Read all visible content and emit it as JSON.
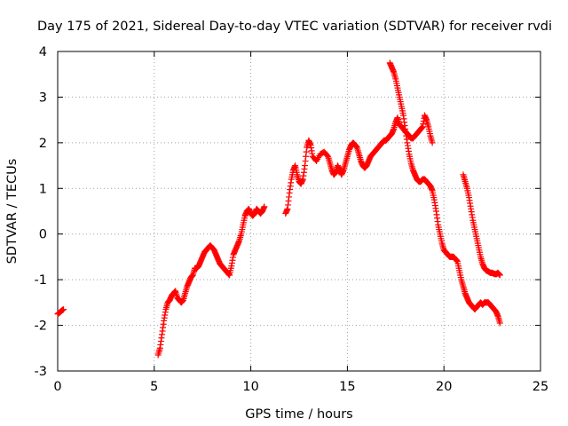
{
  "chart_data": {
    "type": "scatter",
    "title": "Day 175 of 2021, Sidereal Day-to-day VTEC variation (SDTVAR) for receiver rvdi",
    "xlabel": "GPS time / hours",
    "ylabel": "SDTVAR / TECUs",
    "xlim": [
      0,
      25
    ],
    "ylim": [
      -3,
      4
    ],
    "xticks": [
      "0",
      "5",
      "10",
      "15",
      "20",
      "25"
    ],
    "yticks": [
      "-3",
      "-2",
      "-1",
      "0",
      "1",
      "2",
      "3",
      "4"
    ],
    "grid": true,
    "legend": "none",
    "marker": "plus",
    "color": "#ff0000",
    "series": [
      {
        "x": [
          0.0,
          0.1,
          0.2,
          0.3
        ],
        "y": [
          -1.75,
          -1.72,
          -1.68,
          -1.65
        ]
      },
      {
        "x": [
          5.2,
          5.3,
          5.4,
          5.5,
          5.6,
          5.7,
          5.8,
          5.9,
          6.0,
          6.1,
          6.2,
          6.3,
          6.4,
          6.5,
          6.6,
          6.7,
          6.8,
          6.9,
          7.0,
          7.1,
          7.2,
          7.3,
          7.4,
          7.5,
          7.6,
          7.7,
          7.8,
          7.9,
          8.0,
          8.1,
          8.2,
          8.3,
          8.4,
          8.5,
          8.6,
          8.7,
          8.8,
          8.9,
          9.0,
          9.1,
          9.2,
          9.3,
          9.4,
          9.5,
          9.6,
          9.7,
          9.8,
          9.9,
          10.0,
          10.1,
          10.2,
          10.3,
          10.4,
          10.5,
          10.6,
          10.7
        ],
        "y": [
          -2.65,
          -2.5,
          -2.2,
          -1.9,
          -1.65,
          -1.5,
          -1.45,
          -1.35,
          -1.3,
          -1.25,
          -1.4,
          -1.45,
          -1.5,
          -1.45,
          -1.3,
          -1.15,
          -1.05,
          -0.95,
          -0.9,
          -0.75,
          -0.75,
          -0.7,
          -0.6,
          -0.5,
          -0.4,
          -0.35,
          -0.3,
          -0.25,
          -0.3,
          -0.35,
          -0.45,
          -0.55,
          -0.65,
          -0.7,
          -0.75,
          -0.8,
          -0.85,
          -0.9,
          -0.7,
          -0.45,
          -0.35,
          -0.25,
          -0.15,
          0.0,
          0.2,
          0.4,
          0.5,
          0.55,
          0.45,
          0.4,
          0.45,
          0.55,
          0.5,
          0.45,
          0.5,
          0.6
        ]
      },
      {
        "x": [
          11.8,
          11.9,
          12.0,
          12.1,
          12.2,
          12.3,
          12.4,
          12.5,
          12.6,
          12.7,
          12.8,
          12.9,
          13.0,
          13.1,
          13.2,
          13.4,
          13.6,
          13.8,
          14.0,
          14.1,
          14.2,
          14.3,
          14.4,
          14.5,
          14.6,
          14.7,
          14.8,
          14.9,
          15.0,
          15.1,
          15.2,
          15.3,
          15.4,
          15.5,
          15.6,
          15.7,
          15.8,
          15.9,
          16.0,
          16.1,
          16.2,
          16.3,
          16.4,
          16.5,
          16.6,
          16.7,
          16.8,
          16.9,
          17.0,
          17.1,
          17.2,
          17.3,
          17.4,
          17.5,
          17.6,
          17.7,
          17.8,
          17.9,
          18.0,
          18.1,
          18.2,
          18.3,
          18.4,
          18.5,
          18.6,
          18.7,
          18.8,
          18.9,
          19.0,
          19.1,
          19.2,
          19.3,
          19.4
        ],
        "y": [
          0.45,
          0.55,
          0.9,
          1.2,
          1.4,
          1.5,
          1.3,
          1.15,
          1.1,
          1.2,
          1.5,
          1.9,
          2.05,
          1.95,
          1.7,
          1.6,
          1.75,
          1.8,
          1.7,
          1.55,
          1.4,
          1.3,
          1.35,
          1.5,
          1.4,
          1.3,
          1.4,
          1.55,
          1.7,
          1.85,
          1.95,
          2.0,
          1.95,
          1.9,
          1.75,
          1.6,
          1.5,
          1.45,
          1.5,
          1.6,
          1.7,
          1.75,
          1.8,
          1.85,
          1.9,
          1.95,
          2.0,
          2.05,
          2.05,
          2.1,
          2.15,
          2.2,
          2.3,
          2.45,
          2.55,
          2.4,
          2.35,
          2.3,
          2.25,
          2.2,
          2.15,
          2.1,
          2.1,
          2.15,
          2.2,
          2.25,
          2.3,
          2.35,
          2.6,
          2.5,
          2.35,
          2.15,
          2.0
        ]
      },
      {
        "x": [
          17.2,
          17.3,
          17.4,
          17.5,
          17.6,
          17.7,
          17.8,
          17.9,
          18.0,
          18.1,
          18.2,
          18.3,
          18.4,
          18.5,
          18.6,
          18.7,
          18.8,
          18.9,
          19.0,
          19.1,
          19.2,
          19.3,
          19.4,
          19.5,
          19.6,
          19.7,
          19.8,
          19.9,
          20.0,
          20.1,
          20.2,
          20.3,
          20.4,
          20.5,
          20.6,
          20.7,
          20.8,
          20.9,
          21.0,
          21.1,
          21.2,
          21.3,
          21.4,
          21.5,
          21.6,
          21.7,
          21.8,
          21.9,
          22.0,
          22.1,
          22.2,
          22.3,
          22.4,
          22.5,
          22.6,
          22.7,
          22.8,
          22.9
        ],
        "y": [
          3.75,
          3.65,
          3.55,
          3.4,
          3.2,
          3.0,
          2.8,
          2.6,
          2.3,
          2.0,
          1.75,
          1.55,
          1.4,
          1.3,
          1.2,
          1.15,
          1.15,
          1.2,
          1.2,
          1.15,
          1.1,
          1.05,
          0.95,
          0.75,
          0.5,
          0.2,
          0.0,
          -0.2,
          -0.35,
          -0.4,
          -0.45,
          -0.5,
          -0.5,
          -0.5,
          -0.55,
          -0.6,
          -0.8,
          -1.0,
          -1.15,
          -1.3,
          -1.4,
          -1.5,
          -1.55,
          -1.6,
          -1.65,
          -1.6,
          -1.55,
          -1.5,
          -1.55,
          -1.5,
          -1.5,
          -1.5,
          -1.55,
          -1.6,
          -1.65,
          -1.7,
          -1.8,
          -1.95
        ]
      },
      {
        "x": [
          21.0,
          21.1,
          21.2,
          21.3,
          21.4,
          21.5,
          21.6,
          21.7,
          21.8,
          21.9,
          22.0,
          22.1,
          22.2,
          22.3,
          22.4,
          22.5,
          22.6,
          22.7,
          22.8,
          22.9
        ],
        "y": [
          1.3,
          1.15,
          1.0,
          0.8,
          0.55,
          0.3,
          0.1,
          -0.1,
          -0.3,
          -0.5,
          -0.65,
          -0.75,
          -0.8,
          -0.82,
          -0.85,
          -0.85,
          -0.87,
          -0.88,
          -0.85,
          -0.9
        ]
      }
    ]
  }
}
